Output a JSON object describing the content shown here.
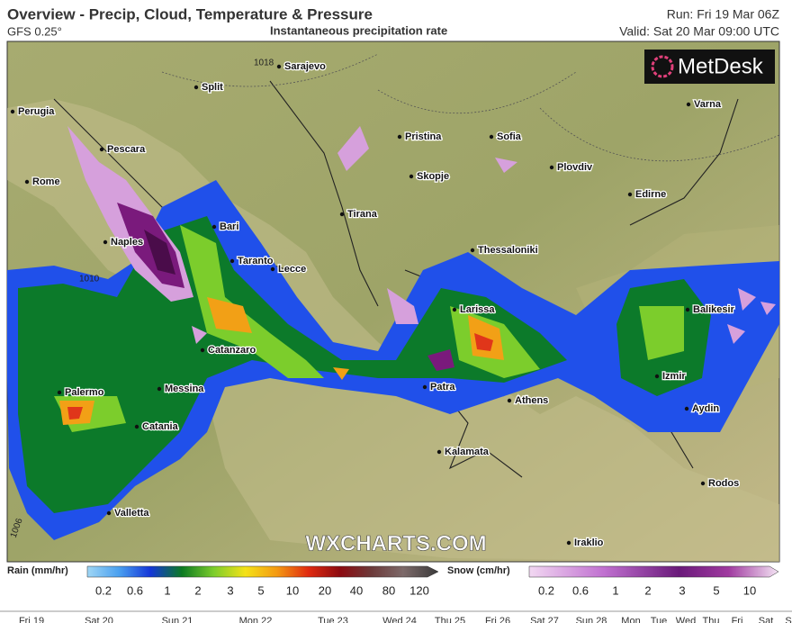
{
  "header": {
    "title": "Overview - Precip, Cloud, Temperature & Pressure",
    "model": "GFS 0.25°",
    "subtitle": "Instantaneous precipitation rate",
    "run": "Run: Fri 19 Mar 06Z",
    "valid": "Valid: Sat 20 Mar 09:00 UTC"
  },
  "brand": "MetDesk",
  "watermark": "WXCHARTS.COM",
  "map": {
    "cities": [
      "Sarajevo",
      "Split",
      "Perugia",
      "Pescara",
      "Rome",
      "Pristina",
      "Sofia",
      "Plovdiv",
      "Skopje",
      "Edirne",
      "Varna",
      "Tirana",
      "Bari",
      "Naples",
      "Thessaloniki",
      "Taranto",
      "Lecce",
      "Larissa",
      "Balikesir",
      "Catanzaro",
      "Messina",
      "Palermo",
      "Patra",
      "Athens",
      "Izmir",
      "Aydin",
      "Catania",
      "Kalamata",
      "Rodos",
      "Valletta",
      "Iraklio"
    ],
    "isobars": [
      1018,
      1010,
      1006
    ]
  },
  "legend": {
    "rain": {
      "label": "Rain (mm/hr)",
      "ticks": [
        0.2,
        0.6,
        1,
        2,
        3,
        5,
        10,
        20,
        40,
        80,
        120
      ]
    },
    "snow": {
      "label": "Snow (cm/hr)",
      "ticks": [
        0.2,
        0.6,
        1,
        2,
        3,
        5,
        10
      ]
    }
  },
  "timeline": [
    "Fri 19",
    "Sat 20",
    "Sun 21",
    "Mon 22",
    "Tue 23",
    "Wed 24",
    "Thu 25",
    "Fri 26",
    "Sat 27",
    "Sun 28",
    "Mon",
    "Tue",
    "Wed",
    "Thu",
    "Fri",
    "Sat",
    "S"
  ]
}
